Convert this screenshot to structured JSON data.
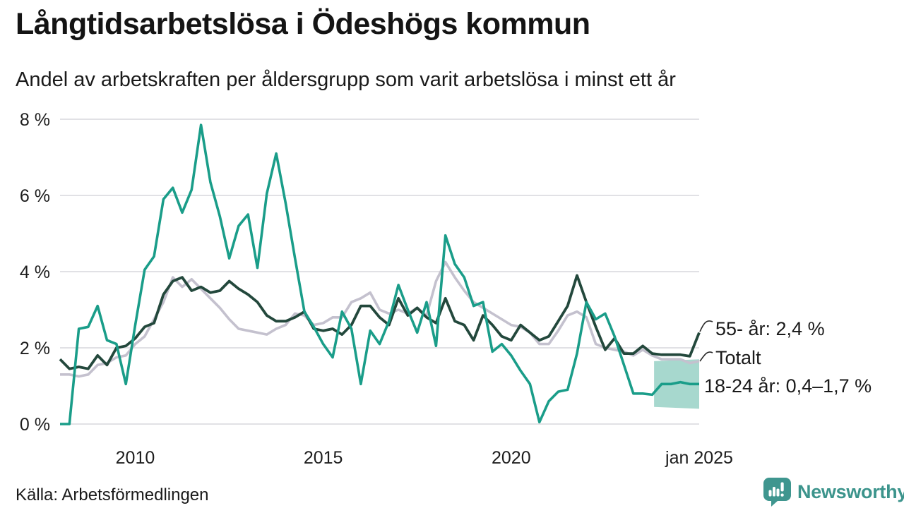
{
  "header": {
    "title": "Långtidsarbetslösa i Ödeshögs kommun",
    "subtitle": "Andel av arbetskraften per åldersgrupp som varit arbetslösa i minst ett år"
  },
  "footer": {
    "source": "Källa: Arbetsförmedlingen",
    "logo_text": "Newsworthy"
  },
  "colors": {
    "grid": "#e1e1e5",
    "axis_text": "#1d1d1d",
    "connector": "#2a2a2a",
    "logo_teal": "#3f968f"
  },
  "chart_data": {
    "type": "line",
    "title": "Långtidsarbetslösa i Ödeshögs kommun",
    "subtitle": "Andel av arbetskraften per åldersgrupp som varit arbetslösa i minst ett år",
    "x_start": 2008,
    "x_step": 0.25,
    "xlim": [
      2008,
      2025
    ],
    "ylim": [
      0,
      8
    ],
    "grid": true,
    "legend_position": "right-annotations",
    "y_ticks": [
      {
        "value": 0,
        "label": "0 %"
      },
      {
        "value": 2,
        "label": "2 %"
      },
      {
        "value": 4,
        "label": "4 %"
      },
      {
        "value": 6,
        "label": "6 %"
      },
      {
        "value": 8,
        "label": "8 %"
      }
    ],
    "x_ticks": [
      {
        "value": 2010,
        "label": "2010"
      },
      {
        "value": 2015,
        "label": "2015"
      },
      {
        "value": 2020,
        "label": "2020"
      },
      {
        "value": 2025,
        "label": "jan 2025"
      }
    ],
    "series": [
      {
        "name": "Totalt",
        "color": "#c4c1ce",
        "width": 3.6,
        "values": [
          1.3,
          1.3,
          1.25,
          1.3,
          1.55,
          1.6,
          1.75,
          1.8,
          2.1,
          2.3,
          2.75,
          3.2,
          3.85,
          3.6,
          3.8,
          3.55,
          3.3,
          3.05,
          2.75,
          2.5,
          2.45,
          2.4,
          2.35,
          2.5,
          2.6,
          2.9,
          2.85,
          2.6,
          2.65,
          2.8,
          2.8,
          3.2,
          3.3,
          3.45,
          3.0,
          2.9,
          3.0,
          2.9,
          3.05,
          2.85,
          3.75,
          4.25,
          3.85,
          3.5,
          3.2,
          3.05,
          2.9,
          2.75,
          2.6,
          2.55,
          2.4,
          2.1,
          2.1,
          2.45,
          2.85,
          2.95,
          2.8,
          2.1,
          2.0,
          1.95,
          1.9,
          1.8,
          1.95,
          1.8,
          1.7,
          1.7,
          1.7,
          1.6,
          1.65
        ]
      },
      {
        "name": "55- år",
        "color": "#23483c",
        "width": 3.8,
        "values": [
          1.7,
          1.45,
          1.5,
          1.45,
          1.8,
          1.55,
          2.0,
          2.05,
          2.25,
          2.55,
          2.65,
          3.4,
          3.75,
          3.85,
          3.5,
          3.6,
          3.45,
          3.5,
          3.75,
          3.55,
          3.4,
          3.2,
          2.85,
          2.7,
          2.7,
          2.8,
          2.95,
          2.5,
          2.45,
          2.5,
          2.35,
          2.6,
          3.1,
          3.1,
          2.8,
          2.6,
          3.3,
          2.85,
          3.05,
          2.8,
          2.65,
          3.3,
          2.7,
          2.6,
          2.2,
          2.85,
          2.6,
          2.3,
          2.2,
          2.6,
          2.4,
          2.2,
          2.3,
          2.7,
          3.1,
          3.9,
          3.2,
          2.55,
          1.95,
          2.25,
          1.85,
          1.85,
          2.05,
          1.85,
          1.82,
          1.82,
          1.82,
          1.78,
          2.4
        ]
      },
      {
        "name": "18-24 år",
        "color": "#1a9d89",
        "width": 3.6,
        "values": [
          0,
          0,
          2.5,
          2.55,
          3.1,
          2.2,
          2.1,
          1.05,
          2.6,
          4.05,
          4.4,
          5.9,
          6.2,
          5.55,
          6.15,
          7.85,
          6.35,
          5.45,
          4.35,
          5.2,
          5.5,
          4.1,
          6.05,
          7.1,
          5.8,
          4.35,
          2.95,
          2.55,
          2.1,
          1.75,
          2.95,
          2.5,
          1.05,
          2.45,
          2.1,
          2.7,
          3.65,
          3.0,
          2.4,
          3.2,
          2.05,
          4.95,
          4.2,
          3.85,
          3.1,
          3.2,
          1.9,
          2.1,
          1.8,
          1.4,
          1.05,
          0.05,
          0.6,
          0.85,
          0.9,
          1.85,
          3.2,
          2.75,
          2.9,
          2.3,
          1.55,
          0.8,
          0.8,
          0.77,
          1.05,
          1.05,
          1.1,
          1.05,
          1.05
        ]
      }
    ],
    "uncertainty_band": {
      "series": "18-24 år",
      "color": "#a7d8ce",
      "x_start": 2023.8,
      "x_end": 2025,
      "top_start": 1.65,
      "top_end": 1.7,
      "bottom_start": 0.45,
      "bottom_end": 0.4
    },
    "annotations": [
      {
        "text": "55- år: 2,4 %",
        "series": "55- år",
        "end_value": "2,4 %"
      },
      {
        "text": "Totalt",
        "series": "Totalt"
      },
      {
        "text": "18-24 år: 0,4–1,7 %",
        "series": "18-24 år",
        "end_value": "0,4–1,7 %"
      }
    ]
  }
}
